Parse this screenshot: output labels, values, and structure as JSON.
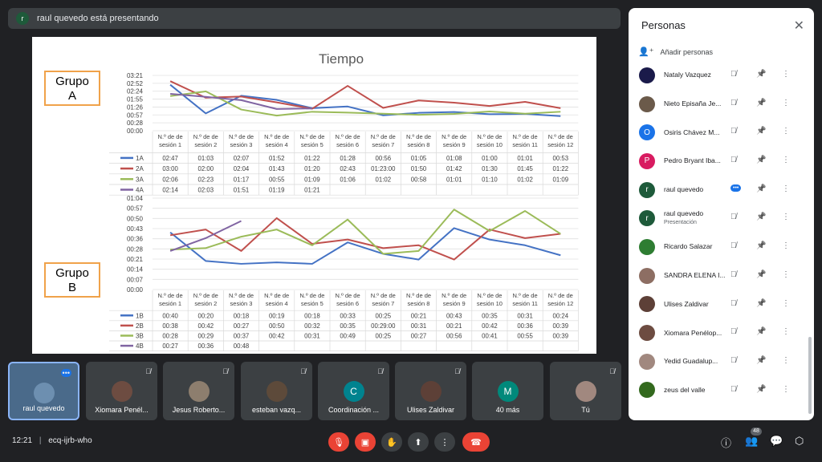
{
  "banner": {
    "avatar_letter": "r",
    "text": "raul quevedo está presentando"
  },
  "slide": {
    "grupo_a_line1": "Grupo",
    "grupo_a_line2": "A",
    "grupo_b_line1": "Grupo",
    "grupo_b_line2": "B"
  },
  "chart_data": [
    {
      "type": "line",
      "title": "Tiempo",
      "categories": [
        "N.º de sesión 1",
        "N.º de sesión 2",
        "N.º de sesión 3",
        "N.º de sesión 4",
        "N.º de sesión 5",
        "N.º de sesión 6",
        "N.º de sesión 7",
        "N.º de sesión 8",
        "N.º de sesión 9",
        "N.º de sesión 10",
        "N.º de sesión 11",
        "N.º de sesión 12"
      ],
      "y_ticks": [
        "03:21",
        "02:52",
        "02:24",
        "01:55",
        "01:26",
        "00:57",
        "00:28",
        "00:00"
      ],
      "ylim_seconds": [
        0,
        201
      ],
      "series": [
        {
          "name": "1A",
          "color": "#4472c4",
          "labels": [
            "02:47",
            "01:03",
            "02:07",
            "01:52",
            "01:22",
            "01:28",
            "00:56",
            "01:05",
            "01:08",
            "01:00",
            "01:01",
            "00:53"
          ],
          "values": [
            167,
            63,
            127,
            112,
            82,
            88,
            56,
            65,
            68,
            60,
            61,
            53
          ]
        },
        {
          "name": "2A",
          "color": "#c0504d",
          "labels": [
            "03:00",
            "02:00",
            "02:04",
            "01:43",
            "01:20",
            "02:43",
            "01:23:00",
            "01:50",
            "01:42",
            "01:30",
            "01:45",
            "01:22"
          ],
          "values": [
            180,
            120,
            124,
            103,
            80,
            163,
            83,
            110,
            102,
            90,
            105,
            82
          ]
        },
        {
          "name": "3A",
          "color": "#9bbb59",
          "labels": [
            "02:06",
            "02:23",
            "01:17",
            "00:55",
            "01:09",
            "01:06",
            "01:02",
            "00:58",
            "01:01",
            "01:10",
            "01:02",
            "01:09"
          ],
          "values": [
            126,
            143,
            77,
            55,
            69,
            66,
            62,
            58,
            61,
            70,
            62,
            69
          ]
        },
        {
          "name": "4A",
          "color": "#8064a2",
          "labels": [
            "02:14",
            "02:03",
            "01:51",
            "01:19",
            "01:21",
            "",
            "",
            "",
            "",
            "",
            "",
            ""
          ],
          "values": [
            134,
            123,
            111,
            79,
            81,
            null,
            null,
            null,
            null,
            null,
            null,
            null
          ]
        }
      ]
    },
    {
      "type": "line",
      "title": "",
      "categories": [
        "N.º de sesión 1",
        "N.º de sesión 2",
        "N.º de sesión 3",
        "N.º de sesión 4",
        "N.º de sesión 5",
        "N.º de sesión 6",
        "N.º de sesión 7",
        "N.º de sesión 8",
        "N.º de sesión 9",
        "N.º de sesión 10",
        "N.º de sesión 11",
        "N.º de sesión 12"
      ],
      "y_ticks": [
        "01:04",
        "00:57",
        "00:50",
        "00:43",
        "00:36",
        "00:28",
        "00:21",
        "00:14",
        "00:07",
        "00:00"
      ],
      "ylim_seconds": [
        0,
        64
      ],
      "series": [
        {
          "name": "1B",
          "color": "#4472c4",
          "labels": [
            "00:40",
            "00:20",
            "00:18",
            "00:19",
            "00:18",
            "00:33",
            "00:25",
            "00:21",
            "00:43",
            "00:35",
            "00:31",
            "00:24"
          ],
          "values": [
            40,
            20,
            18,
            19,
            18,
            33,
            25,
            21,
            43,
            35,
            31,
            24
          ]
        },
        {
          "name": "2B",
          "color": "#c0504d",
          "labels": [
            "00:38",
            "00:42",
            "00:27",
            "00:50",
            "00:32",
            "00:35",
            "00:29:00",
            "00:31",
            "00:21",
            "00:42",
            "00:36",
            "00:39"
          ],
          "values": [
            38,
            42,
            27,
            50,
            32,
            35,
            29,
            31,
            21,
            42,
            36,
            39
          ]
        },
        {
          "name": "3B",
          "color": "#9bbb59",
          "labels": [
            "00:28",
            "00:29",
            "00:37",
            "00:42",
            "00:31",
            "00:49",
            "00:25",
            "00:27",
            "00:56",
            "00:41",
            "00:55",
            "00:39"
          ],
          "values": [
            28,
            29,
            37,
            42,
            31,
            49,
            25,
            27,
            56,
            41,
            55,
            39
          ]
        },
        {
          "name": "4B",
          "color": "#8064a2",
          "labels": [
            "00:27",
            "00:36",
            "00:48",
            "",
            "",
            "",
            "",
            "",
            "",
            "",
            "",
            ""
          ],
          "values": [
            27,
            36,
            48,
            null,
            null,
            null,
            null,
            null,
            null,
            null,
            null,
            null
          ]
        }
      ]
    }
  ],
  "panel": {
    "title": "Personas",
    "add_label": "Añadir personas",
    "people": [
      {
        "name": "Nataly Vazquez",
        "sub": "",
        "avatar": "",
        "color": "#1a1a4a",
        "mic_off": true
      },
      {
        "name": "Nieto Episaña Je...",
        "sub": "",
        "avatar": "",
        "color": "#6b5a4a",
        "mic_off": true
      },
      {
        "name": "Osiris Chávez M...",
        "sub": "",
        "avatar": "O",
        "color": "#1a73e8",
        "mic_off": true
      },
      {
        "name": "Pedro Bryant Iba...",
        "sub": "",
        "avatar": "P",
        "color": "#d81b60",
        "mic_off": true
      },
      {
        "name": "raul quevedo",
        "sub": "",
        "avatar": "r",
        "color": "#1e5a3a",
        "mic_off": false
      },
      {
        "name": "raul quevedo",
        "sub": "Presentación",
        "avatar": "r",
        "color": "#1e5a3a",
        "mic_off": true
      },
      {
        "name": "Ricardo Salazar",
        "sub": "",
        "avatar": "",
        "color": "#2e7d32",
        "mic_off": true
      },
      {
        "name": "SANDRA ELENA I...",
        "sub": "",
        "avatar": "",
        "color": "#8d6e63",
        "mic_off": true
      },
      {
        "name": "Ulises Zaldivar",
        "sub": "",
        "avatar": "",
        "color": "#5d4037",
        "mic_off": true
      },
      {
        "name": "Xiomara Penélop...",
        "sub": "",
        "avatar": "",
        "color": "#6d4c41",
        "mic_off": true
      },
      {
        "name": "Yedid Guadalup...",
        "sub": "",
        "avatar": "",
        "color": "#a1887f",
        "mic_off": true
      },
      {
        "name": "zeus del valle",
        "sub": "",
        "avatar": "",
        "color": "#33691e",
        "mic_off": true
      }
    ]
  },
  "tiles": [
    {
      "name": "raul quevedo",
      "avatar": "",
      "color": "#6d8fb0"
    },
    {
      "name": "Xiomara Penél...",
      "avatar": "",
      "color": "#6d4c41"
    },
    {
      "name": "Jesus Roberto...",
      "avatar": "",
      "color": "#8d7e6e"
    },
    {
      "name": "esteban vazq...",
      "avatar": "",
      "color": "#5d4a3a"
    },
    {
      "name": "Coordinación ...",
      "avatar": "C",
      "color": "#00838f"
    },
    {
      "name": "Ulises Zaldivar",
      "avatar": "",
      "color": "#5d4037"
    },
    {
      "name": "40 más",
      "avatar": "M",
      "color": "#00897b"
    },
    {
      "name": "Tú",
      "avatar": "",
      "color": "#a1887f"
    }
  ],
  "bottom": {
    "time": "12:21",
    "meeting_code": "ecq-ijrb-who",
    "people_count": "48"
  }
}
